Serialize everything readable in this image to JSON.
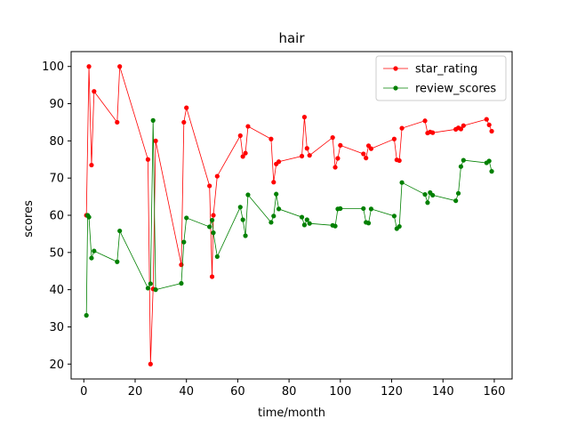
{
  "chart_data": {
    "type": "line",
    "title": "hair",
    "xlabel": "time/month",
    "ylabel": "scores",
    "xlim": [
      -4.95,
      166.95
    ],
    "ylim": [
      16,
      104
    ],
    "xticks": [
      0,
      20,
      40,
      60,
      80,
      100,
      120,
      140,
      160
    ],
    "yticks": [
      20,
      30,
      40,
      50,
      60,
      70,
      80,
      90,
      100
    ],
    "grid": false,
    "legend_position": "top-right",
    "series": [
      {
        "name": "star_rating",
        "color": "#ff0000",
        "points": [
          [
            1,
            60
          ],
          [
            2,
            100
          ],
          [
            3,
            73.5
          ],
          [
            4,
            93.3
          ],
          [
            13,
            85
          ],
          [
            14,
            100
          ],
          [
            25,
            75
          ],
          [
            26,
            20
          ],
          [
            27,
            40.2
          ],
          [
            28,
            80
          ],
          [
            38,
            46.7
          ],
          [
            39,
            85
          ],
          [
            40,
            88.9
          ],
          [
            49,
            67.9
          ],
          [
            50,
            43.5
          ],
          [
            50.5,
            60
          ],
          [
            52,
            70.5
          ],
          [
            61,
            81.4
          ],
          [
            62,
            75.8
          ],
          [
            63,
            76.7
          ],
          [
            64,
            83.9
          ],
          [
            73,
            80.5
          ],
          [
            74,
            68.9
          ],
          [
            75,
            73.8
          ],
          [
            76,
            74.4
          ],
          [
            85,
            75.9
          ],
          [
            86,
            86.4
          ],
          [
            87,
            78
          ],
          [
            88,
            76.1
          ],
          [
            97,
            80.9
          ],
          [
            98,
            72.9
          ],
          [
            99,
            75.3
          ],
          [
            100,
            78.8
          ],
          [
            109,
            76.5
          ],
          [
            110,
            75.4
          ],
          [
            111,
            78.7
          ],
          [
            112,
            77.9
          ],
          [
            121,
            80.5
          ],
          [
            122,
            74.9
          ],
          [
            123,
            74.7
          ],
          [
            124,
            83.4
          ],
          [
            133,
            85.4
          ],
          [
            134,
            82.1
          ],
          [
            135,
            82.4
          ],
          [
            136,
            82.2
          ],
          [
            145,
            83.1
          ],
          [
            146,
            83.5
          ],
          [
            147,
            83.2
          ],
          [
            148,
            84.1
          ],
          [
            157,
            85.8
          ],
          [
            158,
            84.3
          ],
          [
            159,
            82.6
          ]
        ]
      },
      {
        "name": "review_scores",
        "color": "#008000",
        "points": [
          [
            1,
            33.1
          ],
          [
            1.5,
            60
          ],
          [
            2,
            59.5
          ],
          [
            3,
            48.5
          ],
          [
            4,
            50.4
          ],
          [
            13,
            47.5
          ],
          [
            14,
            55.8
          ],
          [
            25,
            40.4
          ],
          [
            26,
            41.6
          ],
          [
            27,
            85.5
          ],
          [
            28,
            40
          ],
          [
            38,
            41.7
          ],
          [
            39,
            52.8
          ],
          [
            40,
            59.3
          ],
          [
            49,
            56.9
          ],
          [
            50,
            58.7
          ],
          [
            50.5,
            55.3
          ],
          [
            52,
            48.9
          ],
          [
            61,
            62.2
          ],
          [
            62,
            58.8
          ],
          [
            63,
            54.5
          ],
          [
            64,
            65.5
          ],
          [
            73,
            58.1
          ],
          [
            74,
            59.8
          ],
          [
            75,
            65.7
          ],
          [
            76,
            61.7
          ],
          [
            85,
            59.5
          ],
          [
            86,
            57.4
          ],
          [
            87,
            58.8
          ],
          [
            88,
            57.8
          ],
          [
            97,
            57.3
          ],
          [
            98,
            57.1
          ],
          [
            99,
            61.7
          ],
          [
            100,
            61.8
          ],
          [
            109,
            61.8
          ],
          [
            110,
            58.1
          ],
          [
            111,
            57.9
          ],
          [
            112,
            61.7
          ],
          [
            121,
            59.8
          ],
          [
            122,
            56.4
          ],
          [
            123,
            57
          ],
          [
            124,
            68.8
          ],
          [
            133,
            65.6
          ],
          [
            134,
            63.4
          ],
          [
            135,
            66.1
          ],
          [
            136,
            65.4
          ],
          [
            145,
            63.9
          ],
          [
            146,
            65.9
          ],
          [
            147,
            73.1
          ],
          [
            148,
            74.8
          ],
          [
            157,
            74.1
          ],
          [
            158,
            74.6
          ],
          [
            159,
            71.8
          ]
        ]
      }
    ]
  }
}
